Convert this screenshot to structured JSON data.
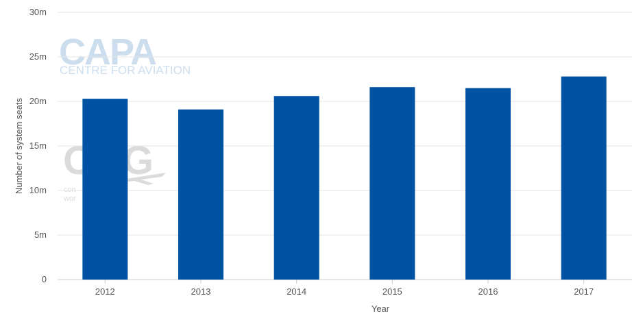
{
  "watermarks": {
    "capa_logo": "CAPA",
    "capa_subtitle": "CENTRE FOR AVIATION",
    "oag_logo": "OAG",
    "oag_tagline_1": "con",
    "oag_tagline_2": "wor"
  },
  "chart_data": {
    "type": "bar",
    "categories": [
      "2012",
      "2013",
      "2014",
      "2015",
      "2016",
      "2017"
    ],
    "values": [
      20.3,
      19.1,
      20.6,
      21.6,
      21.5,
      22.8
    ],
    "title": "",
    "xlabel": "Year",
    "ylabel": "Number of system seats",
    "ylim": [
      0,
      30
    ],
    "yticks": [
      0,
      5,
      10,
      15,
      20,
      25,
      30
    ],
    "ytick_labels": [
      "0",
      "5m",
      "10m",
      "15m",
      "20m",
      "25m",
      "30m"
    ],
    "grid": true,
    "legend": "none",
    "bar_color": "#0052a3"
  }
}
